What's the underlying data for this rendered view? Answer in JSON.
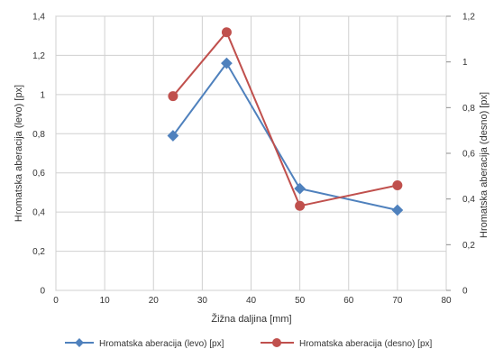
{
  "chart_data": {
    "type": "line",
    "xlabel": "Žižna daljina [mm]",
    "ylabel_left": "Hromatska aberacija (levo) [px]",
    "ylabel_right": "Hromatska aberacija (desno) [px]",
    "xlim": [
      0,
      80
    ],
    "ylim_left": [
      0,
      1.4
    ],
    "ylim_right": [
      0,
      1.2
    ],
    "x_ticks": [
      "0",
      "10",
      "20",
      "30",
      "40",
      "50",
      "60",
      "70",
      "80"
    ],
    "y_left_ticks": [
      "0",
      "0,2",
      "0,4",
      "0,6",
      "0,8",
      "1",
      "1,2",
      "1,4"
    ],
    "y_left_tick_values": [
      0,
      0.2,
      0.4,
      0.6,
      0.8,
      1.0,
      1.2,
      1.4
    ],
    "y_right_ticks": [
      "0",
      "0,2",
      "0,4",
      "0,6",
      "0,8",
      "1",
      "1,2"
    ],
    "y_right_tick_values": [
      0,
      0.2,
      0.4,
      0.6,
      0.8,
      1.0,
      1.2
    ],
    "grid": true,
    "legend_position": "bottom",
    "series": [
      {
        "name": "Hromatska aberacija (levo) [px]",
        "axis": "left",
        "color": "#4f81bd",
        "marker": "diamond",
        "x": [
          24,
          35,
          50,
          70
        ],
        "y": [
          0.79,
          1.16,
          0.52,
          0.41
        ]
      },
      {
        "name": "Hromatska aberacija (desno) [px]",
        "axis": "right",
        "color": "#c0504d",
        "marker": "circle",
        "x": [
          24,
          35,
          50,
          70
        ],
        "y": [
          0.85,
          1.13,
          0.37,
          0.46
        ]
      }
    ]
  }
}
